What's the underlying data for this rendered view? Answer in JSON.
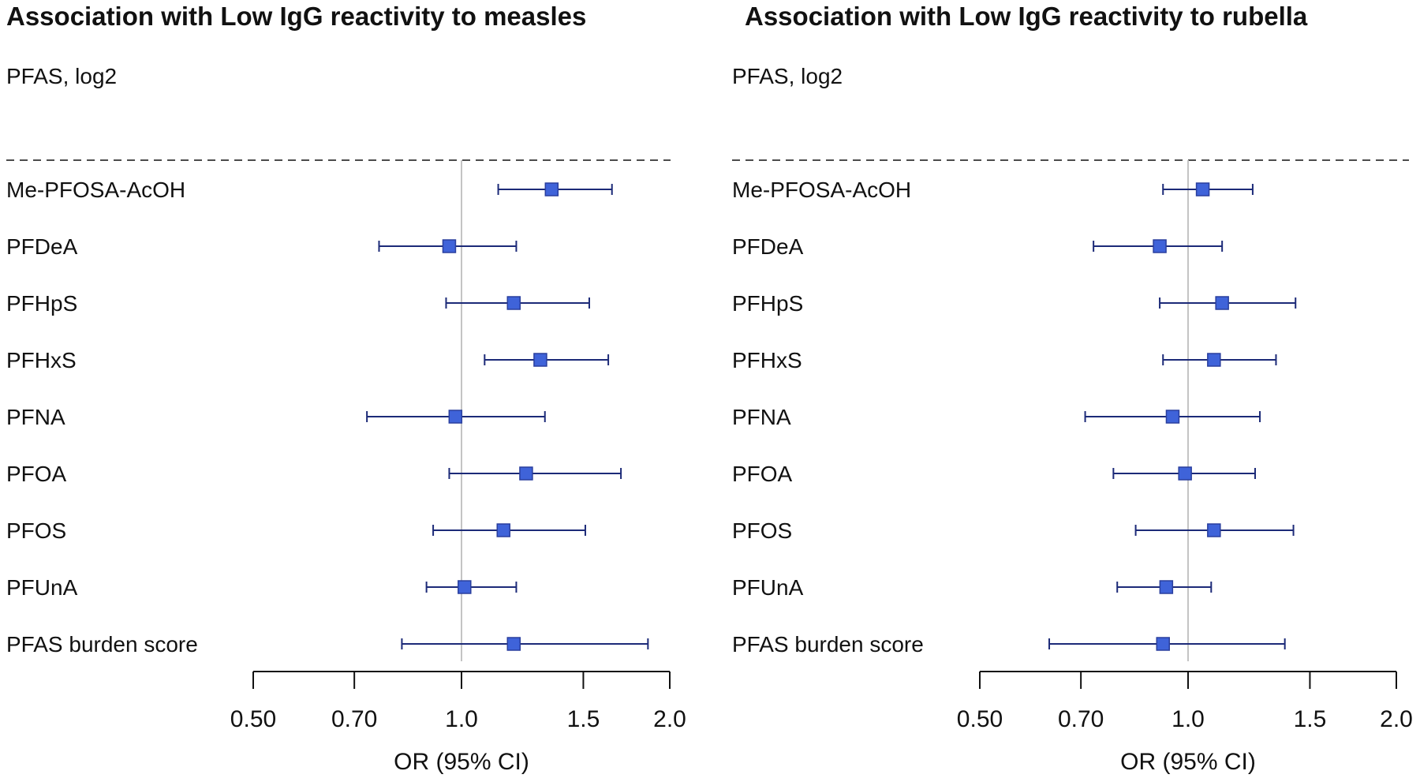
{
  "chart_data": [
    {
      "type": "forest",
      "title": "Association with Low IgG reactivity to measles",
      "group_label": "PFAS, log2",
      "xlabel": "OR (95% CI)",
      "x_scale": "log",
      "xlim": [
        0.5,
        2.0
      ],
      "xticks": [
        "0.50",
        "0.70",
        "1.0",
        "1.5",
        "2.0"
      ],
      "reference_line": 1.0,
      "rows": [
        {
          "label": "Me-PFOSA-AcOH",
          "or": 1.35,
          "lo": 1.13,
          "hi": 1.65
        },
        {
          "label": "PFDeA",
          "or": 0.96,
          "lo": 0.76,
          "hi": 1.2
        },
        {
          "label": "PFHpS",
          "or": 1.19,
          "lo": 0.95,
          "hi": 1.53
        },
        {
          "label": "PFHxS",
          "or": 1.3,
          "lo": 1.08,
          "hi": 1.63
        },
        {
          "label": "PFNA",
          "or": 0.98,
          "lo": 0.73,
          "hi": 1.32
        },
        {
          "label": "PFOA",
          "or": 1.24,
          "lo": 0.96,
          "hi": 1.7
        },
        {
          "label": "PFOS",
          "or": 1.15,
          "lo": 0.91,
          "hi": 1.51
        },
        {
          "label": "PFUnA",
          "or": 1.01,
          "lo": 0.89,
          "hi": 1.2
        },
        {
          "label": "PFAS burden score",
          "or": 1.19,
          "lo": 0.82,
          "hi": 1.86
        }
      ]
    },
    {
      "type": "forest",
      "title": "Association with Low IgG reactivity to rubella",
      "group_label": "PFAS, log2",
      "xlabel": "OR (95% CI)",
      "x_scale": "log",
      "xlim": [
        0.5,
        2.0
      ],
      "xticks": [
        "0.50",
        "0.70",
        "1.0",
        "1.5",
        "2.0"
      ],
      "reference_line": 1.0,
      "rows": [
        {
          "label": "Me-PFOSA-AcOH",
          "or": 1.05,
          "lo": 0.92,
          "hi": 1.24
        },
        {
          "label": "PFDeA",
          "or": 0.91,
          "lo": 0.73,
          "hi": 1.12
        },
        {
          "label": "PFHpS",
          "or": 1.12,
          "lo": 0.91,
          "hi": 1.43
        },
        {
          "label": "PFHxS",
          "or": 1.09,
          "lo": 0.92,
          "hi": 1.34
        },
        {
          "label": "PFNA",
          "or": 0.95,
          "lo": 0.71,
          "hi": 1.27
        },
        {
          "label": "PFOA",
          "or": 0.99,
          "lo": 0.78,
          "hi": 1.25
        },
        {
          "label": "PFOS",
          "or": 1.09,
          "lo": 0.84,
          "hi": 1.42
        },
        {
          "label": "PFUnA",
          "or": 0.93,
          "lo": 0.79,
          "hi": 1.08
        },
        {
          "label": "PFAS burden score",
          "or": 0.92,
          "lo": 0.63,
          "hi": 1.38
        }
      ]
    }
  ],
  "colors": {
    "marker": "#3f63d9",
    "marker_edge": "#2a3f9e",
    "ci_line": "#1c2a78",
    "ref_line": "#c4c4c4",
    "axis": "#111111"
  }
}
